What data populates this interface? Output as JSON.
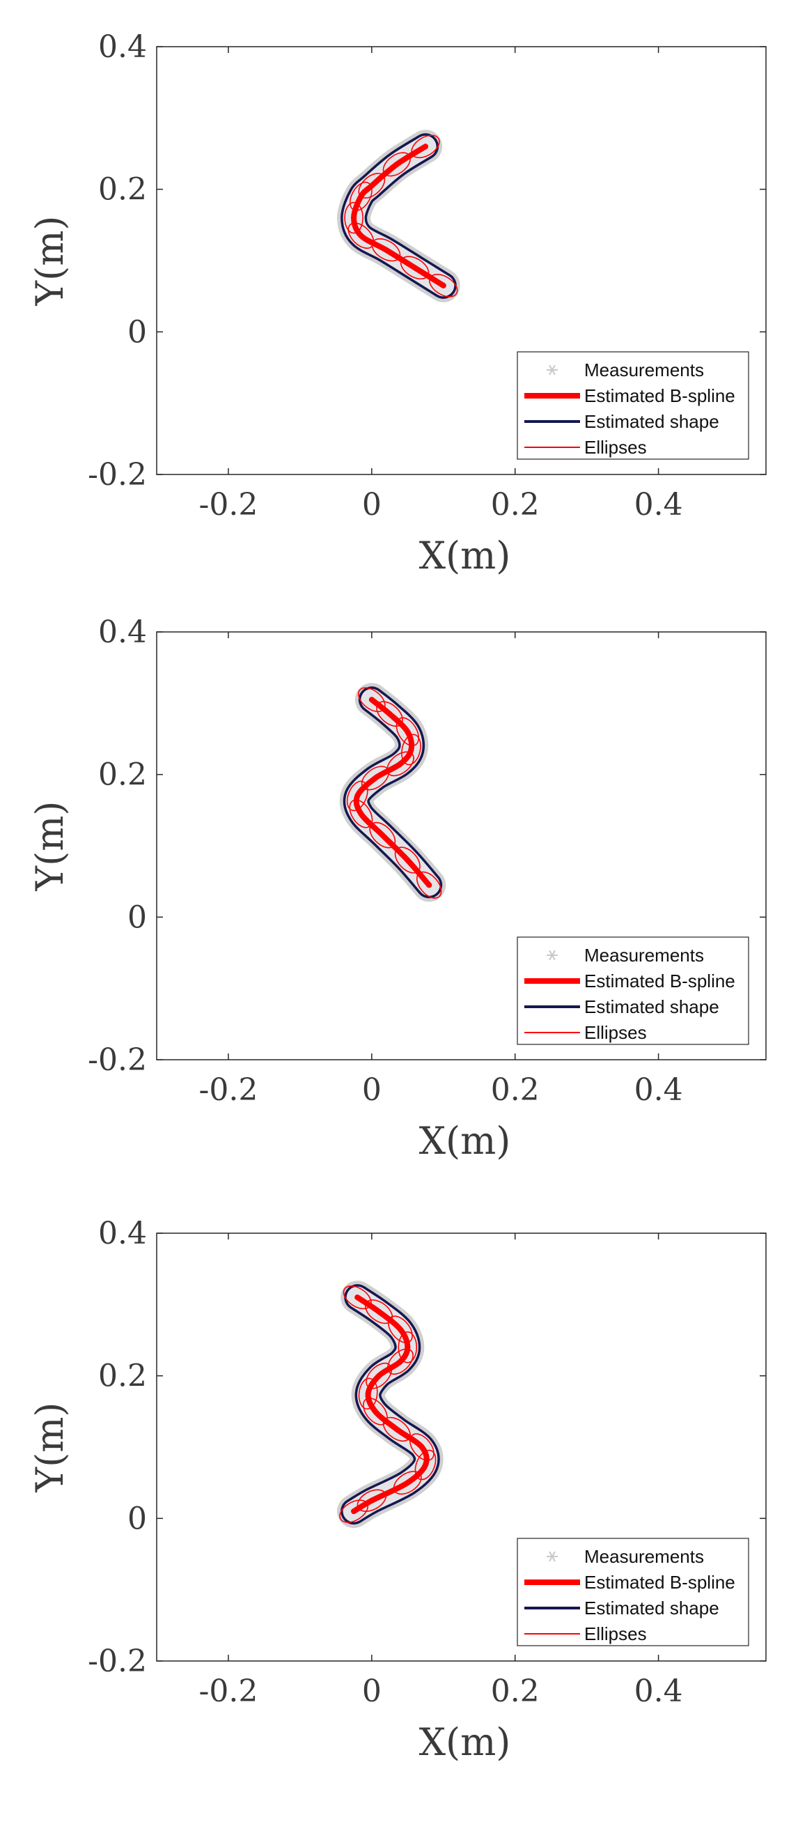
{
  "chart_data": [
    {
      "type": "line",
      "xlabel": "X(m)",
      "ylabel": "Y(m)",
      "xlim": [
        -0.3,
        0.55
      ],
      "ylim": [
        -0.2,
        0.4
      ],
      "xticks": [
        -0.2,
        0,
        0.2,
        0.4
      ],
      "yticks": [
        -0.2,
        0,
        0.2,
        0.4
      ],
      "xtick_labels": [
        "-0.2",
        "0",
        "0.2",
        "0.4"
      ],
      "ytick_labels": [
        "-0.2",
        "0",
        "0.2",
        "0.4"
      ],
      "grid": false,
      "legend_position": "bottom-right",
      "series": [
        {
          "name": "Measurements",
          "color": "#c8c8c8"
        },
        {
          "name": "Estimated B-spline",
          "color": "#ff0000",
          "x": [
            0.075,
            0.035,
            0.0,
            -0.015,
            -0.025,
            -0.015,
            0.02,
            0.06,
            0.1
          ],
          "y": [
            0.26,
            0.235,
            0.205,
            0.19,
            0.16,
            0.135,
            0.115,
            0.09,
            0.065
          ]
        },
        {
          "name": "Estimated shape",
          "color": "#141850"
        },
        {
          "name": "Ellipses",
          "color": "#ff0000"
        }
      ]
    },
    {
      "type": "line",
      "xlabel": "X(m)",
      "ylabel": "Y(m)",
      "xlim": [
        -0.3,
        0.55
      ],
      "ylim": [
        -0.2,
        0.4
      ],
      "xticks": [
        -0.2,
        0,
        0.2,
        0.4
      ],
      "yticks": [
        -0.2,
        0,
        0.2,
        0.4
      ],
      "xtick_labels": [
        "-0.2",
        "0",
        "0.2",
        "0.4"
      ],
      "ytick_labels": [
        "-0.2",
        "0",
        "0.2",
        "0.4"
      ],
      "grid": false,
      "legend_position": "bottom-right",
      "series": [
        {
          "name": "Measurements",
          "color": "#c8c8c8"
        },
        {
          "name": "Estimated B-spline",
          "color": "#ff0000",
          "x": [
            0.0,
            0.025,
            0.05,
            0.055,
            0.04,
            0.005,
            -0.02,
            -0.015,
            0.015,
            0.05,
            0.08
          ],
          "y": [
            0.305,
            0.285,
            0.26,
            0.235,
            0.215,
            0.195,
            0.17,
            0.145,
            0.115,
            0.08,
            0.045
          ]
        },
        {
          "name": "Estimated shape",
          "color": "#141850"
        },
        {
          "name": "Ellipses",
          "color": "#ff0000"
        }
      ]
    },
    {
      "type": "line",
      "xlabel": "X(m)",
      "ylabel": "Y(m)",
      "xlim": [
        -0.3,
        0.55
      ],
      "ylim": [
        -0.2,
        0.4
      ],
      "xticks": [
        -0.2,
        0,
        0.2,
        0.4
      ],
      "yticks": [
        -0.2,
        0,
        0.2,
        0.4
      ],
      "xtick_labels": [
        "-0.2",
        "0",
        "0.2",
        "0.4"
      ],
      "ytick_labels": [
        "-0.2",
        "0",
        "0.2",
        "0.4"
      ],
      "grid": false,
      "legend_position": "bottom-right",
      "series": [
        {
          "name": "Measurements",
          "color": "#c8c8c8"
        },
        {
          "name": "Estimated B-spline",
          "color": "#ff0000",
          "x": [
            -0.02,
            0.01,
            0.04,
            0.05,
            0.04,
            0.01,
            -0.005,
            0.005,
            0.035,
            0.07,
            0.075,
            0.05,
            0.0,
            -0.025
          ],
          "y": [
            0.31,
            0.29,
            0.265,
            0.24,
            0.22,
            0.2,
            0.175,
            0.15,
            0.125,
            0.1,
            0.075,
            0.05,
            0.025,
            0.01
          ]
        },
        {
          "name": "Estimated shape",
          "color": "#141850"
        },
        {
          "name": "Ellipses",
          "color": "#ff0000"
        }
      ]
    }
  ]
}
